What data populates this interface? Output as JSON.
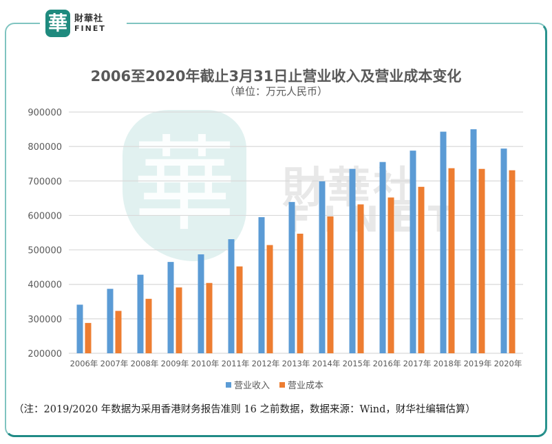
{
  "brand": {
    "logo_glyph": "華",
    "name_cn": "財華社",
    "name_en": "FINET"
  },
  "watermark": {
    "seal_glyph": "華",
    "name_cn": "財華社",
    "name_en": "FINET"
  },
  "colors": {
    "revenue": "#5b9bd5",
    "cost": "#ed7d31",
    "grid": "#d9d9d9",
    "frame": "#2a938e"
  },
  "note": "（注：2019/2020 年数据为采用香港财务报告准则 16 之前数据，数据来源：Wind，财华社编辑估算）",
  "chart_data": {
    "type": "bar",
    "title": "2006至2020年截止3月31日止营业收入及营业成本变化",
    "subtitle": "（单位：万元人民币）",
    "xlabel": "",
    "ylabel": "",
    "ylim": [
      200000,
      900000
    ],
    "yticks": [
      "200000",
      "300000",
      "400000",
      "500000",
      "600000",
      "700000",
      "800000",
      "900000"
    ],
    "grid": true,
    "legend_position": "bottom",
    "categories": [
      "2006年",
      "2007年",
      "2008年",
      "2009年",
      "2010年",
      "2011年",
      "2012年",
      "2013年",
      "2014年",
      "2015年",
      "2016年",
      "2017年",
      "2018年",
      "2019年",
      "2020年"
    ],
    "series": [
      {
        "name": "营业收入",
        "values": [
          341000,
          387000,
          428000,
          465000,
          487000,
          531000,
          595000,
          639000,
          699000,
          735000,
          755000,
          788000,
          843000,
          850000,
          794000
        ]
      },
      {
        "name": "营业成本",
        "values": [
          288000,
          323000,
          358000,
          391000,
          404000,
          452000,
          514000,
          547000,
          597000,
          632000,
          652000,
          683000,
          737000,
          735000,
          731000
        ]
      }
    ]
  }
}
